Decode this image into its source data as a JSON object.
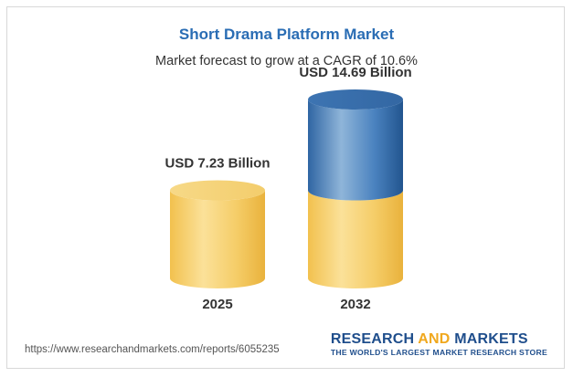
{
  "chart_data": {
    "type": "bar",
    "title": "Short Drama Platform Market",
    "subtitle": "Market forecast to grow at a CAGR of 10.6%",
    "categories": [
      "2025",
      "2032"
    ],
    "values": [
      7.23,
      14.69
    ],
    "data_labels": [
      "USD 7.23 Billion",
      "USD 14.69 Billion"
    ],
    "unit": "USD Billion",
    "style": "3d-cylinder",
    "colors": {
      "base": "#f2c55c",
      "growth": "#3f79b5",
      "title": "#2a6db4"
    }
  },
  "footer": {
    "url": "https://www.researchandmarkets.com/reports/6055235",
    "brand_word1": "RESEARCH",
    "brand_word2": "AND",
    "brand_word3": "MARKETS",
    "brand_tagline": "THE WORLD'S LARGEST MARKET RESEARCH STORE"
  }
}
